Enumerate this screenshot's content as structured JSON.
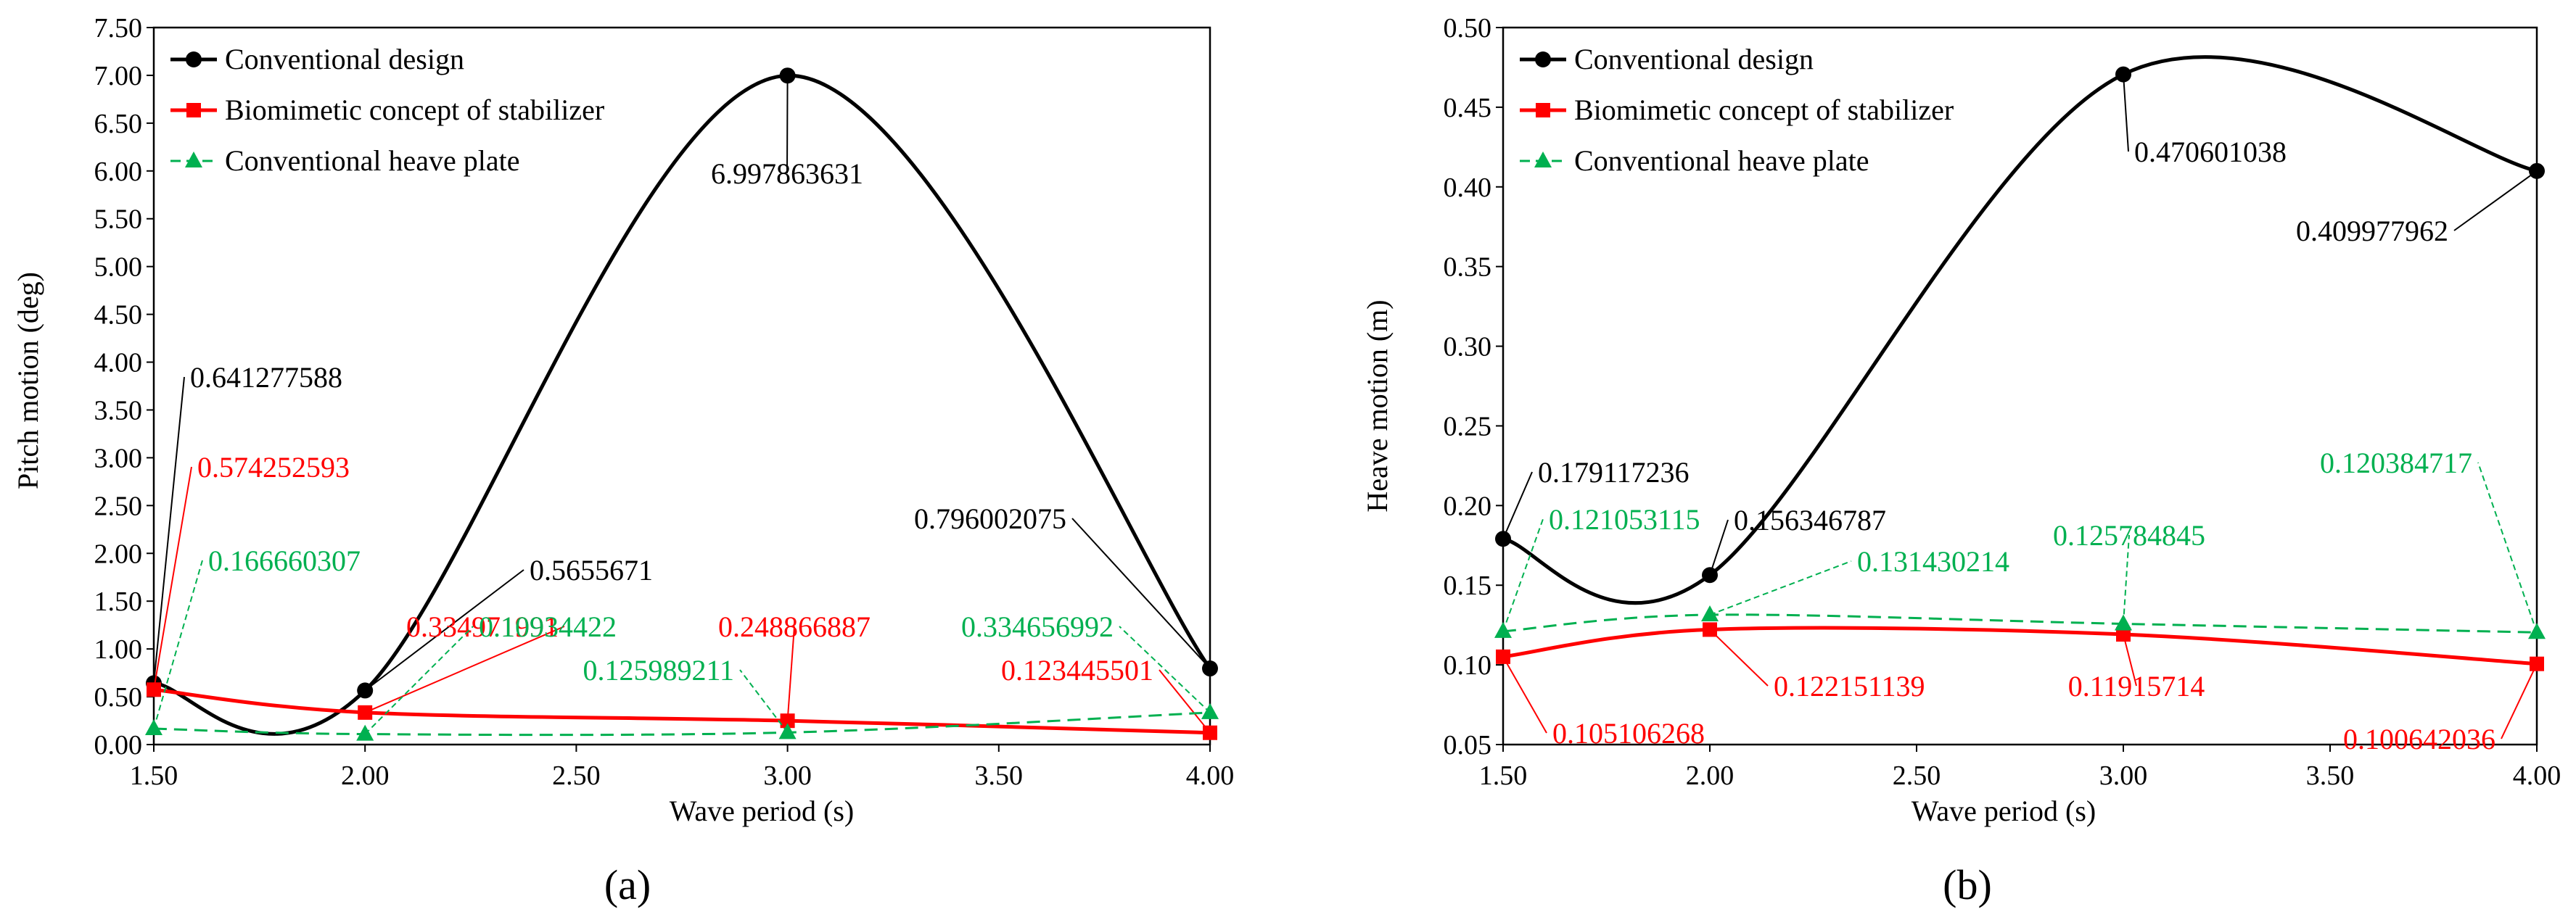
{
  "colors": {
    "conventional": "#000000",
    "biomimetic": "#ff0000",
    "heave_plate": "#00b050",
    "axis": "#000000",
    "tick": "#595959"
  },
  "chart_data": [
    {
      "type": "line",
      "panel_label": "(a)",
      "xlabel": "Wave period (s)",
      "ylabel": "Pitch motion (deg)",
      "xlim": [
        1.5,
        4.0
      ],
      "ylim": [
        0.0,
        7.5
      ],
      "xticks": [
        "1.50",
        "2.00",
        "2.50",
        "3.00",
        "3.50",
        "4.00"
      ],
      "yticks": [
        "0.00",
        "0.50",
        "1.00",
        "1.50",
        "2.00",
        "2.50",
        "3.00",
        "3.50",
        "4.00",
        "4.50",
        "5.00",
        "5.50",
        "6.00",
        "6.50",
        "7.00",
        "7.50"
      ],
      "legend_position": "top-left",
      "x": [
        1.5,
        2.0,
        3.0,
        4.0
      ],
      "series": [
        {
          "name": "Conventional design",
          "color_key": "conventional",
          "marker": "circle",
          "dash": false,
          "values": [
            0.641277588,
            0.5655671,
            6.997863631,
            0.796002075
          ],
          "labels": [
            "0.641277588",
            "0.5655671",
            "6.997863631",
            "0.796002075"
          ]
        },
        {
          "name": "Biomimetic concept of stabilizer",
          "color_key": "biomimetic",
          "marker": "square",
          "dash": false,
          "values": [
            0.574252593,
            0.334971991,
            0.248866887,
            0.123445501
          ],
          "labels": [
            "0.574252593",
            "0.334971991",
            "0.248866887",
            "0.123445501"
          ]
        },
        {
          "name": "Conventional heave plate",
          "color_key": "heave_plate",
          "marker": "triangle",
          "dash": true,
          "values": [
            0.166660307,
            0.10934422,
            0.125989211,
            0.334656992
          ],
          "labels": [
            "0.166660307",
            "0.10934422",
            "0.125989211",
            "0.334656992"
          ]
        }
      ]
    },
    {
      "type": "line",
      "panel_label": "(b)",
      "xlabel": "Wave period (s)",
      "ylabel": "Heave motion (m)",
      "xlim": [
        1.5,
        4.0
      ],
      "ylim": [
        0.05,
        0.5
      ],
      "xticks": [
        "1.50",
        "2.00",
        "2.50",
        "3.00",
        "3.50",
        "4.00"
      ],
      "yticks": [
        "0.05",
        "0.10",
        "0.15",
        "0.20",
        "0.25",
        "0.30",
        "0.35",
        "0.40",
        "0.45",
        "0.50"
      ],
      "legend_position": "top-left",
      "x": [
        1.5,
        2.0,
        3.0,
        4.0
      ],
      "series": [
        {
          "name": "Conventional design",
          "color_key": "conventional",
          "marker": "circle",
          "dash": false,
          "values": [
            0.179117236,
            0.156346787,
            0.470601038,
            0.409977962
          ],
          "labels": [
            "0.179117236",
            "0.156346787",
            "0.470601038",
            "0.409977962"
          ]
        },
        {
          "name": "Biomimetic concept of stabilizer",
          "color_key": "biomimetic",
          "marker": "square",
          "dash": false,
          "values": [
            0.105106268,
            0.122151139,
            0.11915714,
            0.100642036
          ],
          "labels": [
            "0.105106268",
            "0.122151139",
            "0.11915714",
            "0.100642036"
          ]
        },
        {
          "name": "Conventional heave plate",
          "color_key": "heave_plate",
          "marker": "triangle",
          "dash": true,
          "values": [
            0.121053115,
            0.131430214,
            0.125784845,
            0.120384717
          ],
          "labels": [
            "0.121053115",
            "0.131430214",
            "0.125784845",
            "0.120384717"
          ]
        }
      ]
    }
  ]
}
